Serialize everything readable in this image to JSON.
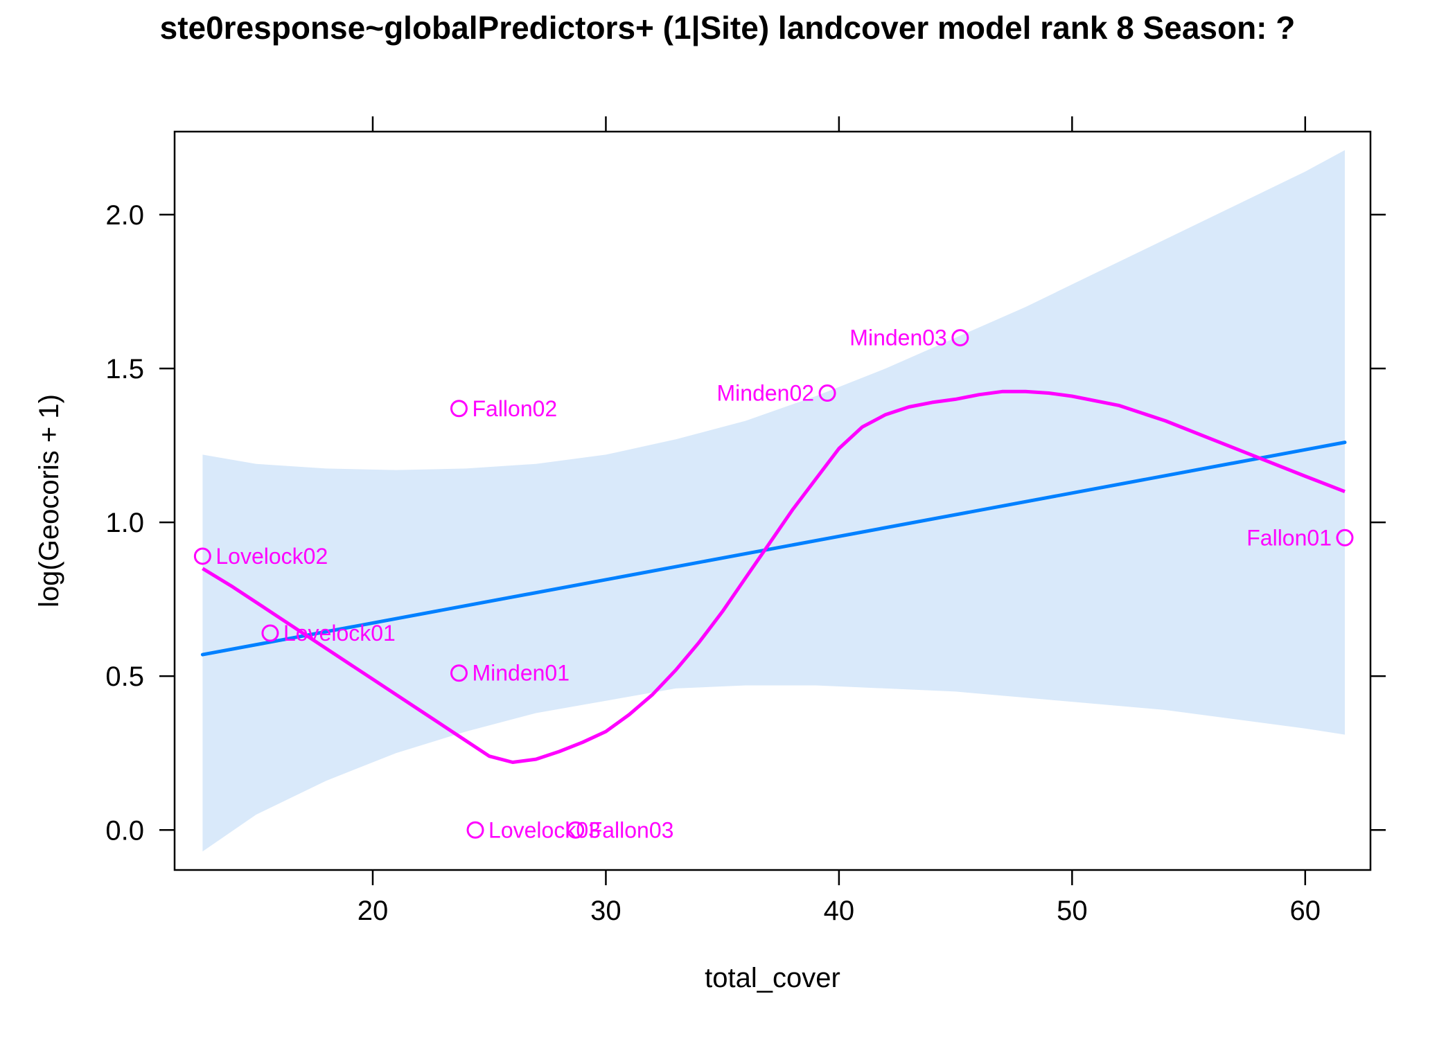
{
  "chart_data": {
    "type": "scatter",
    "title": "ste0response~globalPredictors+ (1|Site) landcover model rank 8 Season: ?",
    "xlabel": "total_cover",
    "ylabel": "log(Geocoris + 1)",
    "xlim": [
      11.5,
      62.8
    ],
    "ylim": [
      -0.13,
      2.27
    ],
    "x_ticks": [
      20,
      30,
      40,
      50,
      60
    ],
    "y_ticks": [
      0.0,
      0.5,
      1.0,
      1.5,
      2.0
    ],
    "x_tick_labels": [
      "20",
      "30",
      "40",
      "50",
      "60"
    ],
    "y_tick_labels": [
      "0.0",
      "0.5",
      "1.0",
      "1.5",
      "2.0"
    ],
    "colors": {
      "points": "#ff00ff",
      "smooth": "#ff00ff",
      "fit": "#0080ff",
      "band": "#d9e9fa",
      "frame": "#000000"
    },
    "points": [
      {
        "label": "Lovelock02",
        "x": 12.7,
        "y": 0.89,
        "label_side": "right"
      },
      {
        "label": "Lovelock01",
        "x": 15.6,
        "y": 0.64,
        "label_side": "right"
      },
      {
        "label": "Fallon02",
        "x": 23.7,
        "y": 1.37,
        "label_side": "right"
      },
      {
        "label": "Minden01",
        "x": 23.7,
        "y": 0.51,
        "label_side": "right"
      },
      {
        "label": "Lovelock03",
        "x": 24.4,
        "y": 0.0,
        "label_side": "right"
      },
      {
        "label": "Fallon03",
        "x": 28.7,
        "y": 0.0,
        "label_side": "right"
      },
      {
        "label": "Minden02",
        "x": 39.5,
        "y": 1.42,
        "label_side": "left"
      },
      {
        "label": "Minden03",
        "x": 45.2,
        "y": 1.6,
        "label_side": "left"
      },
      {
        "label": "Fallon01",
        "x": 61.7,
        "y": 0.95,
        "label_side": "left"
      }
    ],
    "fit_line": {
      "x": [
        12.7,
        61.7
      ],
      "y": [
        0.57,
        1.26
      ]
    },
    "confidence_band": {
      "x": [
        12.7,
        15,
        18,
        21,
        24,
        27,
        30,
        33,
        36,
        39,
        42,
        45,
        48,
        51,
        54,
        57,
        60,
        61.7
      ],
      "upper": [
        1.22,
        1.19,
        1.175,
        1.17,
        1.175,
        1.19,
        1.22,
        1.27,
        1.33,
        1.41,
        1.5,
        1.6,
        1.7,
        1.81,
        1.92,
        2.03,
        2.14,
        2.21
      ],
      "lower": [
        -0.07,
        0.05,
        0.16,
        0.25,
        0.32,
        0.38,
        0.42,
        0.46,
        0.47,
        0.47,
        0.46,
        0.45,
        0.43,
        0.41,
        0.39,
        0.36,
        0.33,
        0.31
      ]
    },
    "smooth_line": {
      "x": [
        12.7,
        14,
        16,
        18,
        20,
        22,
        24,
        25,
        26,
        27,
        28,
        29,
        30,
        31,
        32,
        33,
        34,
        35,
        36,
        37,
        38,
        39,
        40,
        41,
        42,
        43,
        44,
        45,
        46,
        47,
        48,
        49,
        50,
        52,
        54,
        56,
        58,
        60,
        61.7
      ],
      "y": [
        0.85,
        0.79,
        0.69,
        0.59,
        0.49,
        0.39,
        0.29,
        0.24,
        0.22,
        0.23,
        0.255,
        0.285,
        0.32,
        0.375,
        0.44,
        0.52,
        0.61,
        0.71,
        0.82,
        0.93,
        1.04,
        1.14,
        1.24,
        1.31,
        1.35,
        1.375,
        1.39,
        1.4,
        1.415,
        1.425,
        1.425,
        1.42,
        1.41,
        1.38,
        1.33,
        1.27,
        1.21,
        1.15,
        1.1
      ]
    }
  }
}
